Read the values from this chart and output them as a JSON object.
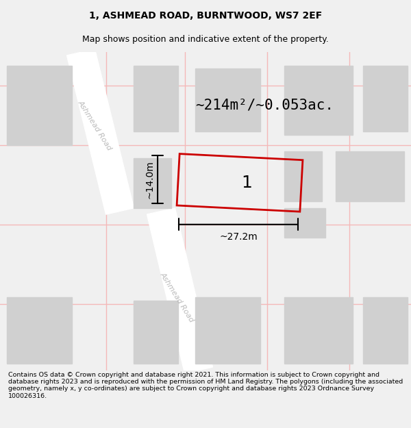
{
  "title_line1": "1, ASHMEAD ROAD, BURNTWOOD, WS7 2EF",
  "title_line2": "Map shows position and indicative extent of the property.",
  "footer_text": "Contains OS data © Crown copyright and database right 2021. This information is subject to Crown copyright and database rights 2023 and is reproduced with the permission of HM Land Registry. The polygons (including the associated geometry, namely x, y co-ordinates) are subject to Crown copyright and database rights 2023 Ordnance Survey 100026316.",
  "bg_color": "#f0f0f0",
  "map_bg": "#eeeeee",
  "road_color_minor": "#f5b8b8",
  "road_color_major": "#ffffff",
  "plot_color": "#cc0000",
  "area_text": "~214m²/~0.053ac.",
  "width_text": "~27.2m",
  "height_text": "~14.0m",
  "plot_label": "1",
  "building_color": "#d0d0d0",
  "road_label_color": "#bbbbbb",
  "title_fontsize": 10,
  "subtitle_fontsize": 9,
  "footer_fontsize": 6.8
}
